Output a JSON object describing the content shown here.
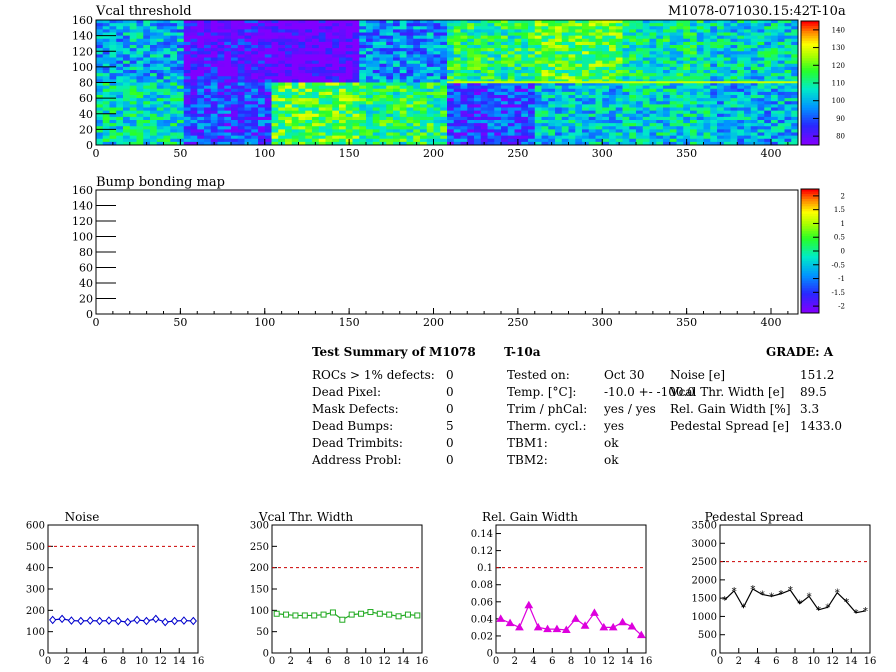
{
  "header": {
    "map_title": "Vcal threshold",
    "module_id": "M1078-071030.15:42T-10a",
    "bump_title": "Bump bonding map"
  },
  "maps": {
    "x_ticks": [
      "0",
      "50",
      "100",
      "150",
      "200",
      "250",
      "300",
      "350",
      "400"
    ],
    "y_ticks": [
      "0",
      "20",
      "40",
      "60",
      "80",
      "100",
      "120",
      "140",
      "160"
    ]
  },
  "palette1": {
    "labels": [
      "140",
      "130",
      "120",
      "110",
      "100",
      "90",
      "80"
    ],
    "colors": [
      "#ff0000",
      "#ff8000",
      "#ffff00",
      "#80ff00",
      "#00ff80",
      "#00c0ff",
      "#0040ff",
      "#4000ff",
      "#8000ff"
    ]
  },
  "palette2": {
    "labels": [
      "2",
      "1.5",
      "1",
      "0.5",
      "0",
      "-0.5",
      "-1",
      "-1.5",
      "-2"
    ]
  },
  "summary": {
    "title": "Test Summary of M1078",
    "temp_tag": "T-10a",
    "grade": "GRADE:  A",
    "left": [
      {
        "label": "ROCs > 1% defects:",
        "value": "0"
      },
      {
        "label": "Dead Pixel:",
        "value": "0"
      },
      {
        "label": "Mask Defects:",
        "value": "0"
      },
      {
        "label": "Dead Bumps:",
        "value": "5"
      },
      {
        "label": "Dead Trimbits:",
        "value": "0"
      },
      {
        "label": "Address Probl:",
        "value": "0"
      }
    ],
    "middle": [
      {
        "label": "Tested on:",
        "value": "Oct 30"
      },
      {
        "label": "Temp. [°C]:",
        "value": "-10.0 +- -100.0"
      },
      {
        "label": "Trim / phCal:",
        "value": "yes / yes"
      },
      {
        "label": "Therm. cycl.:",
        "value": "yes"
      },
      {
        "label": "TBM1:",
        "value": "ok"
      },
      {
        "label": "TBM2:",
        "value": "ok"
      }
    ],
    "right": [
      {
        "label": "Noise [e]",
        "value": "151.2"
      },
      {
        "label": "Vcal Thr. Width [e]",
        "value": "89.5"
      },
      {
        "label": "Rel. Gain Width [%]",
        "value": "3.3"
      },
      {
        "label": "Pedestal Spread [e]",
        "value": "1433.0"
      }
    ]
  },
  "chart_data": [
    {
      "type": "heatmap",
      "title": "Vcal threshold",
      "xlim": [
        0,
        416
      ],
      "ylim": [
        0,
        160
      ],
      "zlim": [
        75,
        145
      ],
      "roc_values_top": [
        100,
        80,
        75,
        96,
        112,
        118,
        108,
        104
      ],
      "roc_values_bottom": [
        106,
        88,
        118,
        112,
        88,
        102,
        104,
        100
      ]
    },
    {
      "type": "heatmap",
      "title": "Bump bonding map",
      "xlim": [
        0,
        416
      ],
      "ylim": [
        0,
        160
      ],
      "zlim": [
        -2,
        2
      ]
    },
    {
      "type": "scatter",
      "title": "Noise",
      "xlim": [
        0,
        16
      ],
      "ylim": [
        0,
        600
      ],
      "xticks": [
        "0",
        "2",
        "4",
        "6",
        "8",
        "10",
        "12",
        "14",
        "16"
      ],
      "yticks": [
        "0",
        "100",
        "200",
        "300",
        "400",
        "500",
        "600"
      ],
      "threshold": 500,
      "color": "#0000cc",
      "marker": "diamond",
      "x": [
        0.5,
        1.5,
        2.5,
        3.5,
        4.5,
        5.5,
        6.5,
        7.5,
        8.5,
        9.5,
        10.5,
        11.5,
        12.5,
        13.5,
        14.5,
        15.5
      ],
      "values": [
        155,
        160,
        152,
        150,
        152,
        150,
        152,
        150,
        145,
        155,
        150,
        160,
        145,
        150,
        152,
        150
      ]
    },
    {
      "type": "scatter",
      "title": "Vcal Thr. Width",
      "xlim": [
        0,
        16
      ],
      "ylim": [
        0,
        300
      ],
      "xticks": [
        "0",
        "2",
        "4",
        "6",
        "8",
        "10",
        "12",
        "14",
        "16"
      ],
      "yticks": [
        "0",
        "50",
        "100",
        "150",
        "200",
        "250",
        "300"
      ],
      "threshold": 200,
      "color": "#22aa22",
      "marker": "square",
      "x": [
        0.5,
        1.5,
        2.5,
        3.5,
        4.5,
        5.5,
        6.5,
        7.5,
        8.5,
        9.5,
        10.5,
        11.5,
        12.5,
        13.5,
        14.5,
        15.5
      ],
      "values": [
        92,
        90,
        88,
        88,
        88,
        90,
        95,
        78,
        90,
        92,
        96,
        92,
        90,
        86,
        90,
        88
      ]
    },
    {
      "type": "scatter",
      "title": "Rel. Gain Width",
      "xlim": [
        0,
        16
      ],
      "ylim": [
        0,
        0.15
      ],
      "xticks": [
        "0",
        "2",
        "4",
        "6",
        "8",
        "10",
        "12",
        "14",
        "16"
      ],
      "yticks": [
        "0",
        "0.02",
        "0.04",
        "0.06",
        "0.08",
        "0.1",
        "0.12",
        "0.14"
      ],
      "threshold": 0.1,
      "color": "#dd00dd",
      "marker": "triangle",
      "x": [
        0.5,
        1.5,
        2.5,
        3.5,
        4.5,
        5.5,
        6.5,
        7.5,
        8.5,
        9.5,
        10.5,
        11.5,
        12.5,
        13.5,
        14.5,
        15.5
      ],
      "values": [
        0.04,
        0.035,
        0.03,
        0.056,
        0.03,
        0.028,
        0.028,
        0.027,
        0.04,
        0.032,
        0.047,
        0.03,
        0.03,
        0.036,
        0.031,
        0.021
      ]
    },
    {
      "type": "scatter",
      "title": "Pedestal Spread",
      "xlim": [
        0,
        16
      ],
      "ylim": [
        0,
        3500
      ],
      "xticks": [
        "0",
        "2",
        "4",
        "6",
        "8",
        "10",
        "12",
        "14",
        "16"
      ],
      "yticks": [
        "0",
        "500",
        "1000",
        "1500",
        "2000",
        "2500",
        "3000",
        "3500"
      ],
      "threshold": 2500,
      "color": "#000000",
      "marker": "star",
      "x": [
        0.5,
        1.5,
        2.5,
        3.5,
        4.5,
        5.5,
        6.5,
        7.5,
        8.5,
        9.5,
        10.5,
        11.5,
        12.5,
        13.5,
        14.5,
        15.5
      ],
      "values": [
        1450,
        1700,
        1250,
        1750,
        1600,
        1550,
        1620,
        1720,
        1350,
        1550,
        1180,
        1250,
        1650,
        1400,
        1100,
        1150
      ]
    }
  ]
}
